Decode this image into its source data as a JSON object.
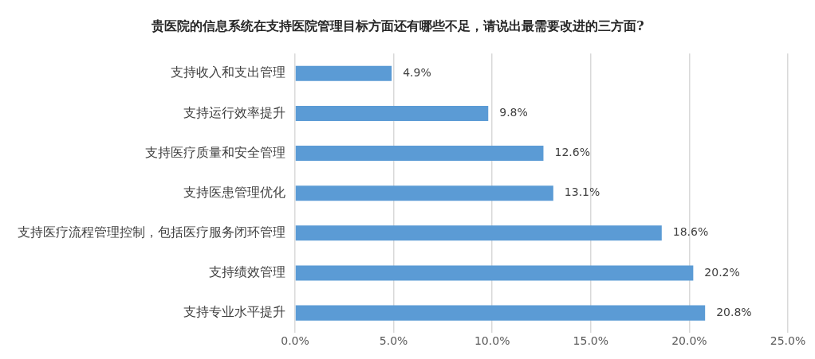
{
  "chart_data": {
    "type": "bar",
    "orientation": "horizontal",
    "title": "贵医院的信息系统在支持医院管理目标方面还有哪些不足，请说出最需要改进的三方面?",
    "categories": [
      "支持收入和支出管理",
      "支持运行效率提升",
      "支持医疗质量和安全管理",
      "支持医患管理优化",
      "支持医疗流程管理控制，包括医疗服务闭环管理",
      "支持绩效管理",
      "支持专业水平提升"
    ],
    "values": [
      4.9,
      9.8,
      12.6,
      13.1,
      18.6,
      20.2,
      20.8
    ],
    "value_labels": [
      "4.9%",
      "9.8%",
      "12.6%",
      "13.1%",
      "18.6%",
      "20.2%",
      "20.8%"
    ],
    "color": "#5b9bd5",
    "xlim": [
      0,
      25
    ],
    "xticks": [
      {
        "value": 0,
        "label": "0.0%"
      },
      {
        "value": 5,
        "label": "5.0%"
      },
      {
        "value": 10,
        "label": "10.0%"
      },
      {
        "value": 15,
        "label": "15.0%"
      },
      {
        "value": 20,
        "label": "20.0%"
      },
      {
        "value": 25,
        "label": "25.0%"
      }
    ],
    "grid": "x"
  }
}
